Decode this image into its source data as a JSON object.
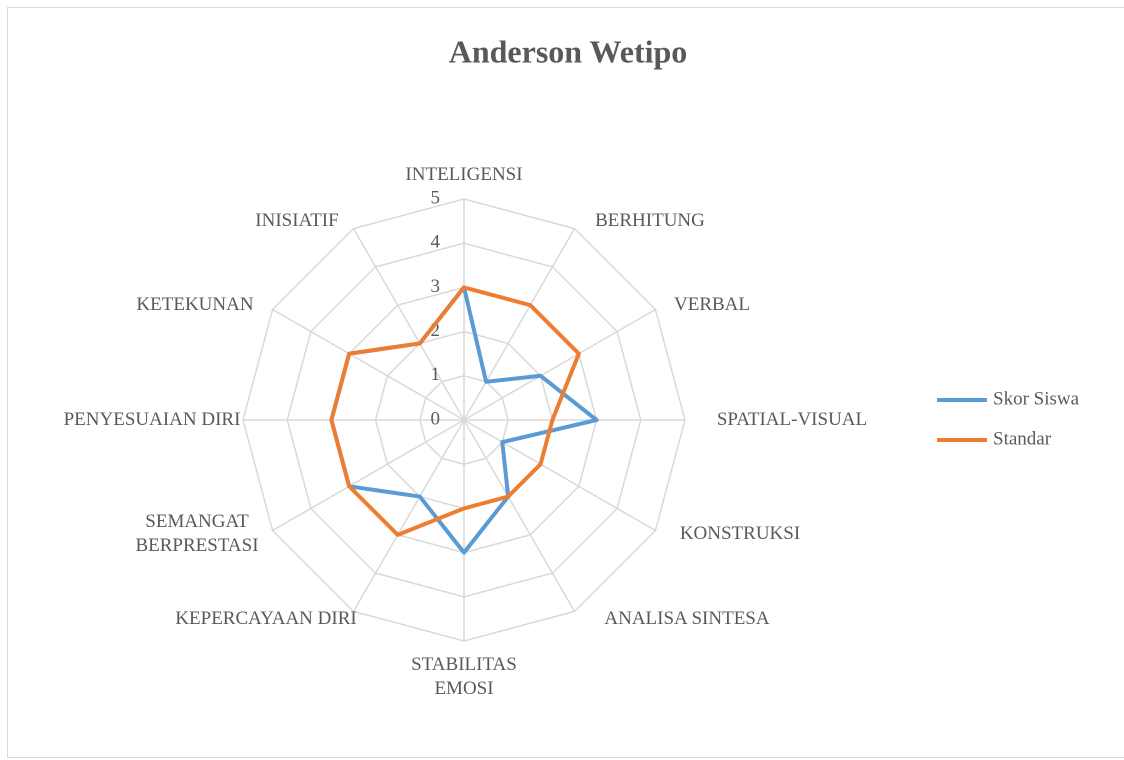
{
  "chart_data": {
    "type": "radar",
    "title": "Anderson Wetipo",
    "categories": [
      "INTELIGENSI",
      "BERHITUNG",
      "VERBAL",
      "SPATIAL-VISUAL",
      "KONSTRUKSI",
      "ANALISA SINTESA",
      "STABILITAS EMOSI",
      "KEPERCAYAAN DIRI",
      "SEMANGAT BERPRESTASI",
      "PENYESUAIAN DIRI",
      "KETEKUNAN",
      "INISIATIF"
    ],
    "series": [
      {
        "name": "Skor Siswa",
        "color": "#5b9bd5",
        "values": [
          3,
          1,
          2,
          3,
          1,
          2,
          3,
          2,
          3,
          3,
          3,
          2
        ]
      },
      {
        "name": "Standar",
        "color": "#ed7d31",
        "values": [
          3,
          3,
          3,
          2,
          2,
          2,
          2,
          3,
          3,
          3,
          3,
          2
        ]
      }
    ],
    "ylim": [
      0,
      5
    ],
    "yticks": [
      0,
      1,
      2,
      3,
      4,
      5
    ],
    "grid": true,
    "legend": "right"
  }
}
